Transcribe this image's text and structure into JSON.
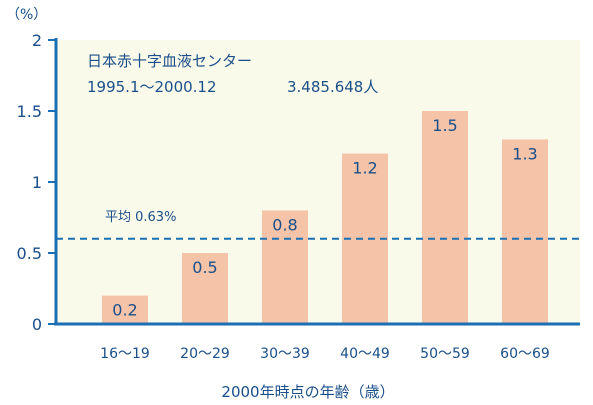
{
  "chart_data": {
    "type": "bar",
    "categories": [
      "16〜19",
      "20〜29",
      "30〜39",
      "40〜49",
      "50〜59",
      "60〜69"
    ],
    "values": [
      0.2,
      0.5,
      0.8,
      1.2,
      1.5,
      1.3
    ],
    "value_labels": [
      "0.2",
      "0.5",
      "0.8",
      "1.2",
      "1.5",
      "1.3"
    ],
    "ylim": [
      0,
      2
    ],
    "y_ticks": [
      0,
      0.5,
      1,
      1.5,
      2
    ],
    "y_tick_labels": [
      "0",
      "0.5",
      "1",
      "1.5",
      "2"
    ],
    "y_unit": "（%）",
    "xlabel": "2000年時点の年齢（歳）",
    "average": {
      "value": 0.6,
      "label": "平均 0.63%"
    },
    "notes": {
      "line1": "日本赤十字血液センター",
      "line2_period": "1995.1〜2000.12",
      "line2_count": "3.485.648人"
    },
    "colors": {
      "bar": "#f5c4a8",
      "plot_bg": "#fafaea",
      "axis": "#1a6fb5",
      "text": "#1a4f8a"
    },
    "grid": false
  }
}
